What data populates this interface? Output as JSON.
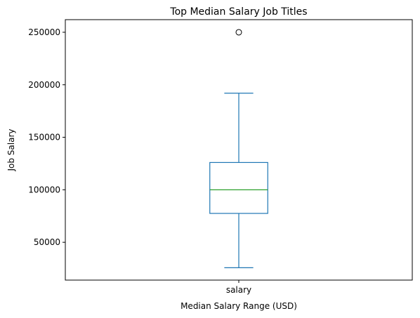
{
  "chart_data": {
    "type": "box",
    "title": "Top Median Salary Job Titles",
    "xlabel": "Median Salary Range (USD)",
    "ylabel": "Job Salary",
    "categories": [
      "salary"
    ],
    "series": [
      {
        "name": "salary",
        "whisker_low": 25800,
        "q1": 77500,
        "median": 100000,
        "q3": 126000,
        "whisker_high": 192000,
        "outliers": [
          250000
        ]
      }
    ],
    "ylim": [
      14000,
      262000
    ],
    "yticks": [
      50000,
      100000,
      150000,
      200000,
      250000
    ],
    "ytick_labels": [
      "50000",
      "100000",
      "150000",
      "200000",
      "250000"
    ],
    "grid": false,
    "colors": {
      "box": "#1f77b4",
      "median": "#2ca02c",
      "outlier": "#000000"
    }
  }
}
